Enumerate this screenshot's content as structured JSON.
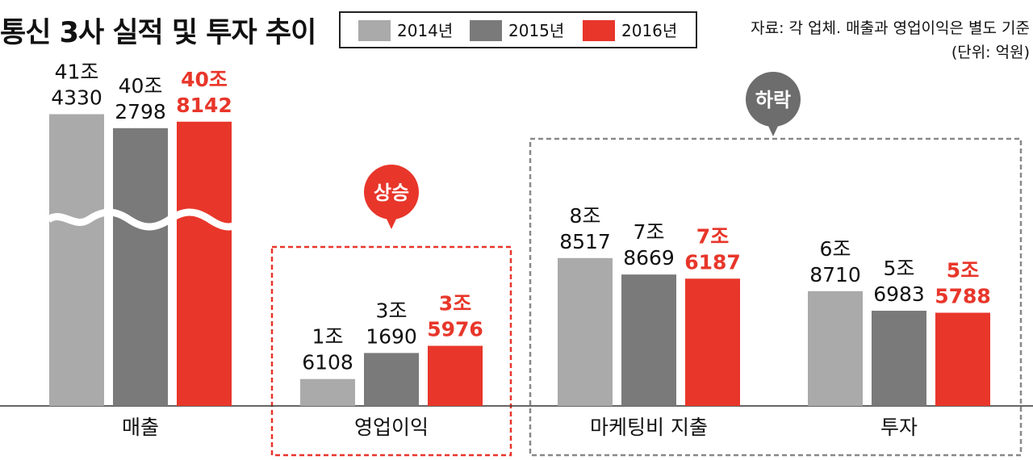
{
  "title": "통신 3사 실적 및 투자 추이",
  "source_line": "자료: 각 업체. 매출과 영업이익은 별도 기준",
  "unit_line": "(단위: 억원)",
  "colors": {
    "2014년": "#aaaaaa",
    "2015년": "#7a7a7a",
    "2016년": "#e8362a",
    "highlight_text": "#e8362a",
    "callout_down": "#6d6d6d"
  },
  "legend": [
    {
      "label": "2014년",
      "color": "#aaaaaa"
    },
    {
      "label": "2015년",
      "color": "#7a7a7a"
    },
    {
      "label": "2016년",
      "color": "#e8362a"
    }
  ],
  "callouts": {
    "operating_profit": "상승",
    "marketing_investment": "하락"
  },
  "chart_data": {
    "type": "bar",
    "categories": [
      "매출",
      "영업이익",
      "마케팅비 지출",
      "투자"
    ],
    "series": [
      {
        "name": "2014년",
        "values": [
          414330,
          16108,
          88517,
          68710
        ],
        "labels": [
          [
            "41조",
            "4330"
          ],
          [
            "1조",
            "6108"
          ],
          [
            "8조",
            "8517"
          ],
          [
            "6조",
            "8710"
          ]
        ]
      },
      {
        "name": "2015년",
        "values": [
          402798,
          31690,
          78669,
          56983
        ],
        "labels": [
          [
            "40조",
            "2798"
          ],
          [
            "3조",
            "1690"
          ],
          [
            "7조",
            "8669"
          ],
          [
            "5조",
            "6983"
          ]
        ]
      },
      {
        "name": "2016년",
        "values": [
          408142,
          35976,
          76187,
          55788
        ],
        "labels": [
          [
            "40조",
            "8142"
          ],
          [
            "3조",
            "5976"
          ],
          [
            "7조",
            "6187"
          ],
          [
            "5조",
            "5788"
          ]
        ]
      }
    ],
    "ylim": [
      0,
      100000
    ],
    "axis_break": "매출",
    "legend_position": "top",
    "grid": false
  }
}
